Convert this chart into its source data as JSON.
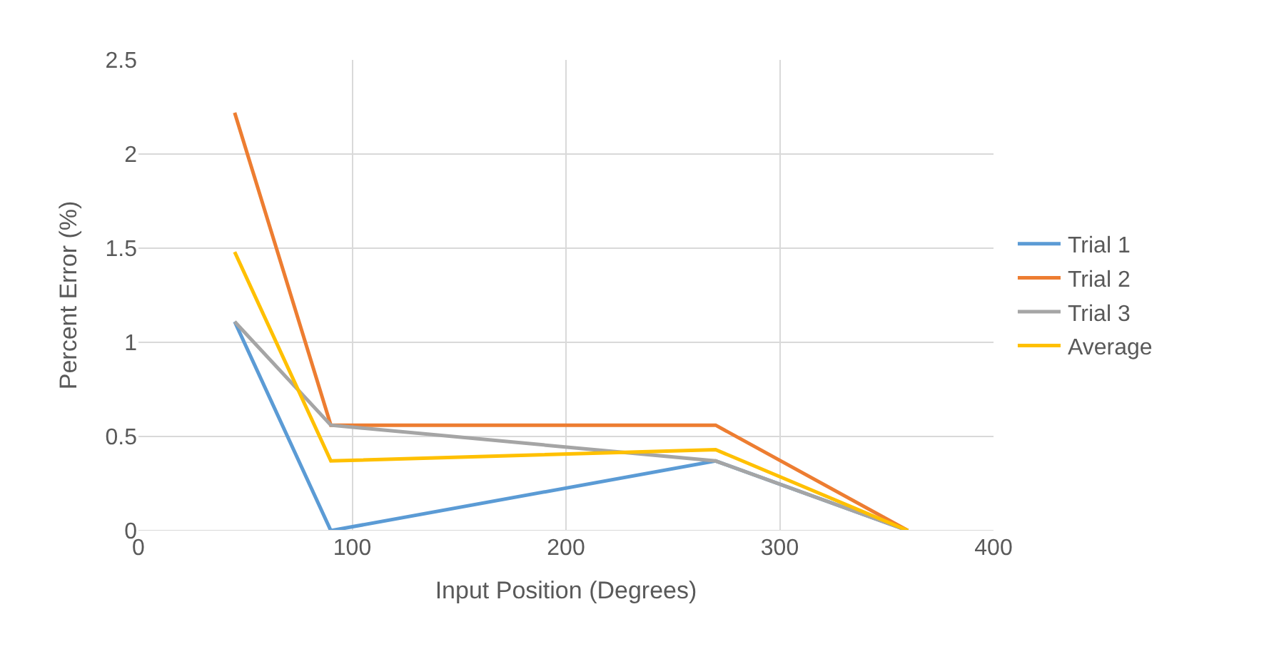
{
  "chart_data": {
    "type": "line",
    "xlabel": "Input Position (Degrees)",
    "ylabel": "Percent Error (%)",
    "x": [
      45,
      90,
      270,
      360
    ],
    "series": [
      {
        "name": "Trial 1",
        "color": "#5b9bd5",
        "values": [
          1.11,
          0,
          0.37,
          0
        ]
      },
      {
        "name": "Trial 2",
        "color": "#ed7d31",
        "values": [
          2.22,
          0.56,
          0.56,
          0
        ]
      },
      {
        "name": "Trial 3",
        "color": "#a5a5a5",
        "values": [
          1.11,
          0.56,
          0.37,
          0
        ]
      },
      {
        "name": "Average",
        "color": "#ffc000",
        "values": [
          1.48,
          0.37,
          0.43,
          0
        ]
      }
    ],
    "xlim": [
      0,
      400
    ],
    "xticks": [
      0,
      100,
      200,
      300,
      400
    ],
    "ylim": [
      0,
      2.5
    ],
    "yticks": [
      0,
      0.5,
      1,
      1.5,
      2,
      2.5
    ],
    "grid": true,
    "legend": "right",
    "marker": "none",
    "line_style": "solid"
  }
}
